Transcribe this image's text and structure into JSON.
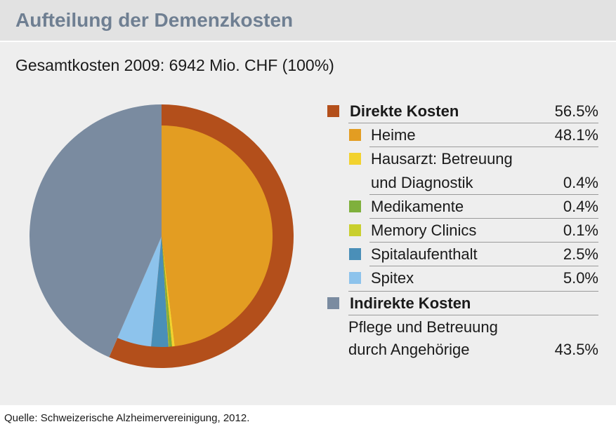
{
  "header": {
    "title": "Aufteilung der Demenzkosten",
    "subtitle": "Gesamtkosten 2009: 6942 Mio. CHF (100%)"
  },
  "footer": {
    "source": "Quelle: Schweizerische Alzheimervereinigung, 2012."
  },
  "chart_data": {
    "type": "pie",
    "title": "Aufteilung der Demenzkosten",
    "subtitle": "Gesamtkosten 2009: 6942 Mio. CHF (100%)",
    "unit": "%",
    "groups": [
      {
        "name": "Direkte Kosten",
        "value": 56.5,
        "value_label": "56.5%",
        "color": "#b34f1b",
        "items": [
          {
            "name": "Heime",
            "value": 48.1,
            "value_label": "48.1%",
            "color": "#e39d22"
          },
          {
            "name_lines": [
              "Hausarzt: Betreuung",
              "und Diagnostik"
            ],
            "value": 0.4,
            "value_label": "0.4%",
            "color": "#f2d22e"
          },
          {
            "name": "Medikamente",
            "value": 0.4,
            "value_label": "0.4%",
            "color": "#7fb03c"
          },
          {
            "name": "Memory Clinics",
            "value": 0.1,
            "value_label": "0.1%",
            "color": "#c9cf2e"
          },
          {
            "name": "Spitalaufenthalt",
            "value": 2.5,
            "value_label": "2.5%",
            "color": "#4a8fb8"
          },
          {
            "name": "Spitex",
            "value": 5.0,
            "value_label": "5.0%",
            "color": "#8dc3ec"
          }
        ]
      },
      {
        "name": "Indirekte Kosten",
        "value": 43.5,
        "value_label": "43.5%",
        "color": "#7a8ba0",
        "items": [
          {
            "name_lines": [
              "Pflege und Betreuung",
              "durch Angehörige"
            ],
            "value": 43.5,
            "value_label": "43.5%",
            "color": "#7a8ba0"
          }
        ]
      }
    ],
    "legend_position": "right"
  }
}
